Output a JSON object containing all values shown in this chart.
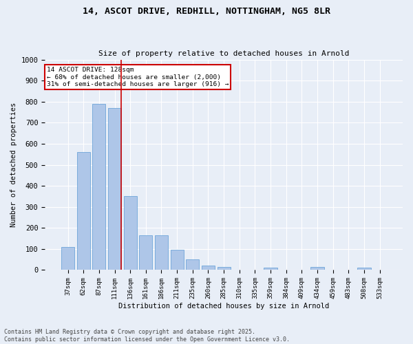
{
  "title_line1": "14, ASCOT DRIVE, REDHILL, NOTTINGHAM, NG5 8LR",
  "title_line2": "Size of property relative to detached houses in Arnold",
  "xlabel": "Distribution of detached houses by size in Arnold",
  "ylabel": "Number of detached properties",
  "categories": [
    "37sqm",
    "62sqm",
    "87sqm",
    "111sqm",
    "136sqm",
    "161sqm",
    "186sqm",
    "211sqm",
    "235sqm",
    "260sqm",
    "285sqm",
    "310sqm",
    "335sqm",
    "359sqm",
    "384sqm",
    "409sqm",
    "434sqm",
    "459sqm",
    "483sqm",
    "508sqm",
    "533sqm"
  ],
  "values": [
    110,
    560,
    790,
    770,
    350,
    165,
    165,
    95,
    50,
    20,
    15,
    0,
    0,
    10,
    0,
    0,
    15,
    0,
    0,
    10,
    0
  ],
  "bar_color": "#aec6e8",
  "bar_edge_color": "#5b9bd5",
  "background_color": "#e8eef7",
  "grid_color": "#ffffff",
  "vline_pos": 3.425,
  "vline_color": "#cc0000",
  "annotation_text": "14 ASCOT DRIVE: 128sqm\n← 68% of detached houses are smaller (2,000)\n31% of semi-detached houses are larger (916) →",
  "annotation_box_color": "#ffffff",
  "annotation_box_edge": "#cc0000",
  "footer_line1": "Contains HM Land Registry data © Crown copyright and database right 2025.",
  "footer_line2": "Contains public sector information licensed under the Open Government Licence v3.0.",
  "ylim": [
    0,
    1000
  ],
  "yticks": [
    0,
    100,
    200,
    300,
    400,
    500,
    600,
    700,
    800,
    900,
    1000
  ]
}
